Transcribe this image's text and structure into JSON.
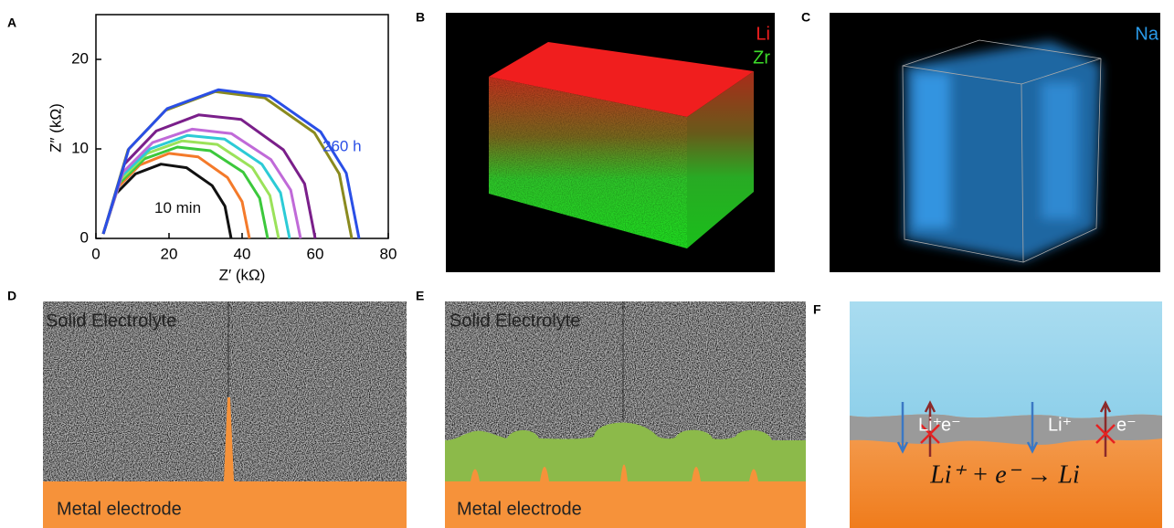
{
  "panel_labels": [
    "A",
    "B",
    "C",
    "D",
    "E",
    "F"
  ],
  "chart_data": {
    "type": "line",
    "xlabel": "Z′ (kΩ)",
    "ylabel": "Z″ (kΩ)",
    "xlim": [
      0,
      80
    ],
    "ylim": [
      0,
      25
    ],
    "xticks": [
      0,
      20,
      40,
      60,
      80
    ],
    "yticks": [
      0,
      10,
      20
    ],
    "annotations": [
      "10 min",
      "260 h"
    ],
    "series": [
      {
        "color": "#111111",
        "x": [
          2,
          5.5,
          10.8,
          17.8,
          24.8,
          31.8,
          35.3,
          37
        ],
        "values": [
          0.5,
          5.0,
          7.2,
          8.3,
          7.9,
          5.9,
          3.6,
          0
        ]
      },
      {
        "color": "#f47a2a",
        "x": [
          2,
          6,
          12,
          20,
          28,
          36,
          40,
          42
        ],
        "values": [
          0.5,
          5.7,
          8.2,
          9.5,
          9.1,
          6.8,
          4.1,
          0
        ]
      },
      {
        "color": "#3cc83c",
        "x": [
          2,
          6.5,
          13.3,
          22.3,
          31.3,
          40.3,
          44.8,
          47
        ],
        "values": [
          0.5,
          6.2,
          8.9,
          10.2,
          9.8,
          7.4,
          4.5,
          0
        ]
      },
      {
        "color": "#9be25a",
        "x": [
          2,
          6.8,
          14,
          23.6,
          33.2,
          42.8,
          47.6,
          50
        ],
        "values": [
          0.5,
          6.6,
          9.5,
          10.9,
          10.5,
          7.9,
          4.8,
          0
        ]
      },
      {
        "color": "#2ccbd6",
        "x": [
          2,
          7.1,
          14.8,
          25,
          35.2,
          45.4,
          50.5,
          53
        ],
        "values": [
          0.5,
          7.0,
          10.0,
          11.5,
          11.1,
          8.3,
          5.1,
          0
        ]
      },
      {
        "color": "#c06ad8",
        "x": [
          2,
          7.4,
          15.5,
          26.3,
          37.1,
          47.9,
          53.3,
          56
        ],
        "values": [
          0.5,
          7.4,
          10.7,
          12.2,
          11.7,
          8.8,
          5.4,
          0
        ]
      },
      {
        "color": "#7a1f8a",
        "x": [
          2,
          7.8,
          16.5,
          28.1,
          39.7,
          51.3,
          57.1,
          60
        ],
        "values": [
          0.5,
          8.3,
          12.0,
          13.8,
          13.3,
          9.9,
          6.1,
          0
        ]
      },
      {
        "color": "#8a8a1e",
        "x": [
          2,
          8.8,
          19,
          32.6,
          46.2,
          59.8,
          66.6,
          70
        ],
        "values": [
          0.5,
          9.9,
          14.3,
          16.4,
          15.7,
          11.8,
          7.2,
          0
        ]
      },
      {
        "color": "#2a4fe6",
        "x": [
          2,
          9,
          19.5,
          33.5,
          47.5,
          61.5,
          68.5,
          72
        ],
        "values": [
          0.5,
          10.0,
          14.5,
          16.6,
          15.9,
          11.9,
          7.3,
          0
        ]
      }
    ]
  },
  "panel_b": {
    "labels": [
      "Li",
      "Zr"
    ]
  },
  "panel_c": {
    "labels": [
      "Na"
    ]
  },
  "panel_d": {
    "top": "Solid Electrolyte",
    "bottom": "Metal electrode"
  },
  "panel_e": {
    "top": "Solid Electrolyte",
    "bottom": "Metal electrode"
  },
  "panel_f": {
    "ion_labels": [
      "Li⁺",
      "e⁻",
      "Li⁺",
      "e⁻"
    ],
    "equation": "Li⁺ + e⁻ → Li"
  }
}
